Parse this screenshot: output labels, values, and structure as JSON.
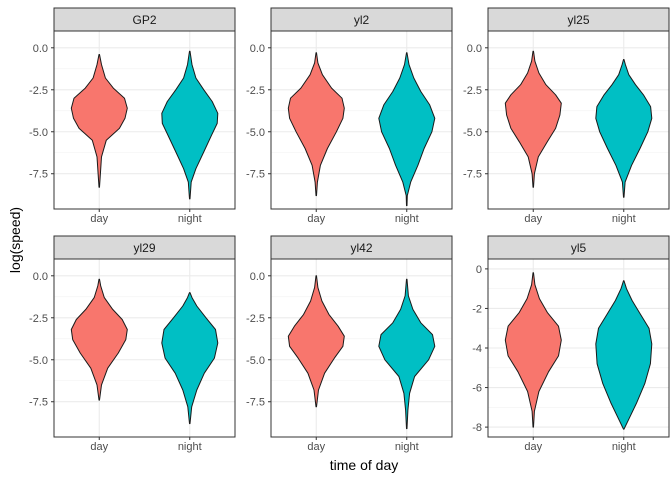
{
  "chart_data": {
    "type": "violin",
    "layout": "facet_wrap 3x2",
    "xlabel": "time of day",
    "ylabel": "log(speed)",
    "categories": [
      "day",
      "night"
    ],
    "colors": {
      "day": "#F8766D",
      "night": "#00BFC4"
    },
    "panels": [
      {
        "title": "GP2",
        "ylim": [
          -9.6,
          1.0
        ],
        "yticks": [
          {
            "v": 0,
            "label": "0.0"
          },
          {
            "v": -2.5,
            "label": "-2.5"
          },
          {
            "v": -5,
            "label": "-5.0"
          },
          {
            "v": -7.5,
            "label": "-7.5"
          }
        ],
        "violins": [
          {
            "group": "day",
            "min": -8.3,
            "max": -0.4,
            "widths": [
              [
                -8.3,
                0.01
              ],
              [
                -7.5,
                0.04
              ],
              [
                -6.5,
                0.08
              ],
              [
                -5.5,
                0.25
              ],
              [
                -4.8,
                0.72
              ],
              [
                -4.2,
                0.92
              ],
              [
                -3.6,
                1.0
              ],
              [
                -3.0,
                0.9
              ],
              [
                -2.4,
                0.5
              ],
              [
                -1.8,
                0.22
              ],
              [
                -1.0,
                0.08
              ],
              [
                -0.4,
                0.01
              ]
            ]
          },
          {
            "group": "night",
            "min": -9.0,
            "max": -0.2,
            "widths": [
              [
                -9.0,
                0.01
              ],
              [
                -8.0,
                0.05
              ],
              [
                -7.2,
                0.22
              ],
              [
                -6.2,
                0.5
              ],
              [
                -5.2,
                0.78
              ],
              [
                -4.5,
                0.98
              ],
              [
                -3.9,
                1.0
              ],
              [
                -3.2,
                0.8
              ],
              [
                -2.5,
                0.5
              ],
              [
                -1.8,
                0.22
              ],
              [
                -1.0,
                0.08
              ],
              [
                -0.2,
                0.01
              ]
            ]
          }
        ]
      },
      {
        "title": "yl2",
        "ylim": [
          -9.6,
          1.0
        ],
        "yticks": [
          {
            "v": 0,
            "label": "0.0"
          },
          {
            "v": -2.5,
            "label": "-2.5"
          },
          {
            "v": -5,
            "label": "-5.0"
          },
          {
            "v": -7.5,
            "label": "-7.5"
          }
        ],
        "violins": [
          {
            "group": "day",
            "min": -8.8,
            "max": -0.3,
            "widths": [
              [
                -8.8,
                0.01
              ],
              [
                -8.0,
                0.04
              ],
              [
                -7.0,
                0.15
              ],
              [
                -6.0,
                0.4
              ],
              [
                -5.0,
                0.72
              ],
              [
                -4.2,
                0.95
              ],
              [
                -3.6,
                1.0
              ],
              [
                -3.0,
                0.92
              ],
              [
                -2.4,
                0.55
              ],
              [
                -1.6,
                0.22
              ],
              [
                -0.9,
                0.06
              ],
              [
                -0.3,
                0.01
              ]
            ]
          },
          {
            "group": "night",
            "min": -9.4,
            "max": -0.3,
            "widths": [
              [
                -9.4,
                0.01
              ],
              [
                -8.8,
                0.02
              ],
              [
                -8.0,
                0.14
              ],
              [
                -7.0,
                0.4
              ],
              [
                -6.0,
                0.62
              ],
              [
                -5.0,
                0.9
              ],
              [
                -4.2,
                1.0
              ],
              [
                -3.4,
                0.82
              ],
              [
                -2.6,
                0.5
              ],
              [
                -1.8,
                0.25
              ],
              [
                -1.0,
                0.08
              ],
              [
                -0.3,
                0.01
              ]
            ]
          }
        ]
      },
      {
        "title": "yl25",
        "ylim": [
          -9.6,
          1.0
        ],
        "yticks": [
          {
            "v": 0,
            "label": "0.0"
          },
          {
            "v": -2.5,
            "label": "-2.5"
          },
          {
            "v": -5,
            "label": "-5.0"
          },
          {
            "v": -7.5,
            "label": "-7.5"
          }
        ],
        "violins": [
          {
            "group": "day",
            "min": -8.3,
            "max": -0.2,
            "widths": [
              [
                -8.3,
                0.01
              ],
              [
                -7.5,
                0.04
              ],
              [
                -6.5,
                0.18
              ],
              [
                -5.6,
                0.5
              ],
              [
                -4.8,
                0.8
              ],
              [
                -4.0,
                0.95
              ],
              [
                -3.3,
                1.0
              ],
              [
                -2.8,
                0.8
              ],
              [
                -2.2,
                0.45
              ],
              [
                -1.5,
                0.2
              ],
              [
                -0.8,
                0.06
              ],
              [
                -0.2,
                0.01
              ]
            ]
          },
          {
            "group": "night",
            "min": -8.9,
            "max": -0.7,
            "widths": [
              [
                -8.9,
                0.01
              ],
              [
                -8.0,
                0.05
              ],
              [
                -7.0,
                0.28
              ],
              [
                -6.0,
                0.58
              ],
              [
                -5.0,
                0.86
              ],
              [
                -4.2,
                1.0
              ],
              [
                -3.5,
                0.96
              ],
              [
                -2.8,
                0.7
              ],
              [
                -2.2,
                0.42
              ],
              [
                -1.6,
                0.18
              ],
              [
                -1.0,
                0.06
              ],
              [
                -0.7,
                0.01
              ]
            ]
          }
        ]
      },
      {
        "title": "yl29",
        "ylim": [
          -9.6,
          1.0
        ],
        "yticks": [
          {
            "v": 0,
            "label": "0.0"
          },
          {
            "v": -2.5,
            "label": "-2.5"
          },
          {
            "v": -5,
            "label": "-5.0"
          },
          {
            "v": -7.5,
            "label": "-7.5"
          }
        ],
        "violins": [
          {
            "group": "day",
            "min": -7.4,
            "max": -0.2,
            "widths": [
              [
                -7.4,
                0.01
              ],
              [
                -6.5,
                0.08
              ],
              [
                -5.5,
                0.3
              ],
              [
                -4.6,
                0.68
              ],
              [
                -3.8,
                0.95
              ],
              [
                -3.2,
                1.0
              ],
              [
                -2.6,
                0.82
              ],
              [
                -2.0,
                0.48
              ],
              [
                -1.3,
                0.18
              ],
              [
                -0.6,
                0.05
              ],
              [
                -0.2,
                0.01
              ]
            ]
          },
          {
            "group": "night",
            "min": -8.8,
            "max": -1.0,
            "widths": [
              [
                -8.8,
                0.01
              ],
              [
                -7.8,
                0.07
              ],
              [
                -6.8,
                0.25
              ],
              [
                -5.8,
                0.52
              ],
              [
                -4.9,
                0.88
              ],
              [
                -4.0,
                1.0
              ],
              [
                -3.2,
                0.92
              ],
              [
                -2.5,
                0.58
              ],
              [
                -1.8,
                0.25
              ],
              [
                -1.3,
                0.08
              ],
              [
                -1.0,
                0.01
              ]
            ]
          }
        ]
      },
      {
        "title": "yl42",
        "ylim": [
          -9.6,
          1.0
        ],
        "yticks": [
          {
            "v": 0,
            "label": "0.0"
          },
          {
            "v": -2.5,
            "label": "-2.5"
          },
          {
            "v": -5,
            "label": "-5.0"
          },
          {
            "v": -7.5,
            "label": "-7.5"
          }
        ],
        "violins": [
          {
            "group": "day",
            "min": -7.8,
            "max": 0.0,
            "widths": [
              [
                -7.8,
                0.01
              ],
              [
                -6.8,
                0.08
              ],
              [
                -5.8,
                0.3
              ],
              [
                -4.9,
                0.65
              ],
              [
                -4.2,
                0.95
              ],
              [
                -3.6,
                1.0
              ],
              [
                -3.0,
                0.78
              ],
              [
                -2.3,
                0.45
              ],
              [
                -1.5,
                0.2
              ],
              [
                -0.7,
                0.06
              ],
              [
                0.0,
                0.01
              ]
            ]
          },
          {
            "group": "night",
            "min": -9.1,
            "max": -0.2,
            "widths": [
              [
                -9.1,
                0.01
              ],
              [
                -8.0,
                0.04
              ],
              [
                -7.0,
                0.1
              ],
              [
                -6.0,
                0.28
              ],
              [
                -5.0,
                0.78
              ],
              [
                -4.2,
                1.0
              ],
              [
                -3.5,
                0.92
              ],
              [
                -2.8,
                0.5
              ],
              [
                -2.0,
                0.22
              ],
              [
                -1.2,
                0.06
              ],
              [
                -0.2,
                0.01
              ]
            ]
          }
        ]
      },
      {
        "title": "yl5",
        "ylim": [
          -8.5,
          0.5
        ],
        "yticks": [
          {
            "v": 0,
            "label": "0"
          },
          {
            "v": -2,
            "label": "-2"
          },
          {
            "v": -4,
            "label": "-4"
          },
          {
            "v": -6,
            "label": "-6"
          },
          {
            "v": -8,
            "label": "-8"
          }
        ],
        "violins": [
          {
            "group": "day",
            "min": -8.0,
            "max": -0.2,
            "widths": [
              [
                -8.0,
                0.01
              ],
              [
                -7.2,
                0.04
              ],
              [
                -6.2,
                0.2
              ],
              [
                -5.2,
                0.55
              ],
              [
                -4.4,
                0.9
              ],
              [
                -3.6,
                1.0
              ],
              [
                -2.9,
                0.9
              ],
              [
                -2.2,
                0.5
              ],
              [
                -1.5,
                0.22
              ],
              [
                -0.8,
                0.06
              ],
              [
                -0.2,
                0.01
              ]
            ]
          },
          {
            "group": "night",
            "min": -8.1,
            "max": -0.6,
            "widths": [
              [
                -8.1,
                0.01
              ],
              [
                -7.6,
                0.18
              ],
              [
                -6.8,
                0.45
              ],
              [
                -5.8,
                0.75
              ],
              [
                -4.8,
                0.95
              ],
              [
                -3.8,
                1.0
              ],
              [
                -3.0,
                0.9
              ],
              [
                -2.3,
                0.6
              ],
              [
                -1.6,
                0.3
              ],
              [
                -1.0,
                0.1
              ],
              [
                -0.6,
                0.01
              ]
            ]
          }
        ]
      }
    ]
  }
}
